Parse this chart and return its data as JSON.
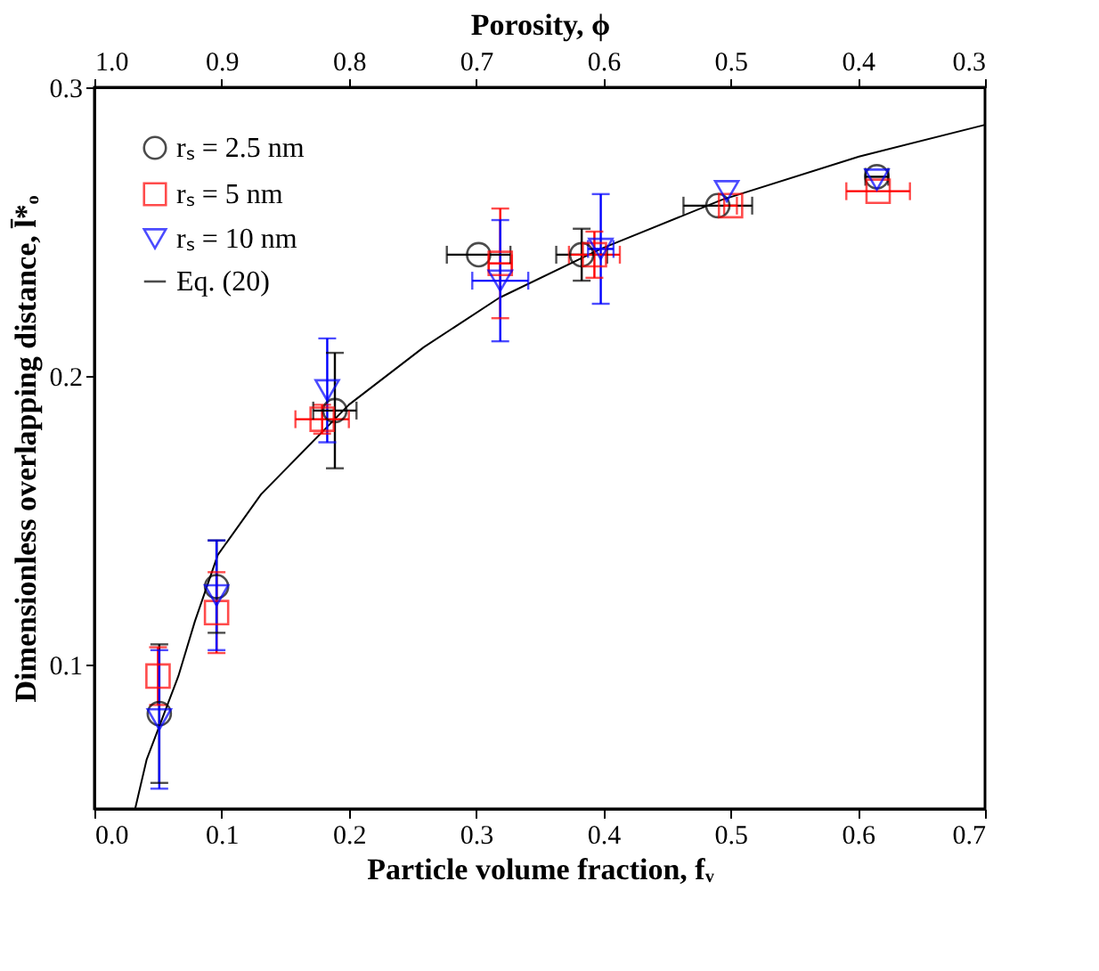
{
  "chart_data": {
    "type": "scatter",
    "xlabel": "Particle volume fraction, fᵥ",
    "ylabel": "Dimensionless overlapping distance, l̄*ₒ",
    "x2label": "Porosity, ϕ",
    "xlim": [
      0,
      0.7
    ],
    "xticks": [
      {
        "value": 0,
        "label": "0.0"
      },
      0.1,
      0.2,
      0.3,
      0.4,
      0.5,
      0.6,
      0.7
    ],
    "x2lim": [
      1.0,
      0.3
    ],
    "x2ticks": [
      {
        "value": 1,
        "label": "1.0"
      },
      0.9,
      0.8,
      0.7,
      0.6,
      0.5,
      0.4,
      0.3
    ],
    "ylim": [
      0.05,
      0.3
    ],
    "yticks": [
      0.1,
      0.2,
      0.3
    ],
    "grid": false,
    "legend": "top left",
    "series": [
      {
        "name": "rₛ = 2.5 nm",
        "marker": "circle",
        "color": "#000000",
        "x": [
          0.051,
          0.096,
          0.189,
          0.302,
          0.383,
          0.49,
          0.615
        ],
        "values": [
          0.083,
          0.127,
          0.188,
          0.242,
          0.242,
          0.259,
          0.269
        ],
        "errors": [
          0.024,
          0.016,
          0.02,
          null,
          0.009,
          null,
          null
        ],
        "xerrors": [
          null,
          null,
          0.017,
          0.025,
          0.02,
          0.027,
          0.009
        ]
      },
      {
        "name": "rₛ = 5 nm",
        "marker": "square",
        "color": "#ff0000",
        "x": [
          0.05,
          0.096,
          0.179,
          0.319,
          0.393,
          0.5,
          0.616
        ],
        "values": [
          0.096,
          0.118,
          0.185,
          0.239,
          0.242,
          0.259,
          0.264
        ],
        "errors": [
          0.01,
          0.014,
          0.005,
          0.019,
          0.008,
          null,
          null
        ],
        "xerrors": [
          null,
          null,
          0.021,
          0.009,
          0.02,
          0.005,
          0.025
        ]
      },
      {
        "name": "rₛ = 10 nm",
        "marker": "triangle",
        "color": "#0000ff",
        "x": [
          0.051,
          0.096,
          0.183,
          0.319,
          0.398,
          0.497,
          0.615
        ],
        "values": [
          0.081,
          0.124,
          0.195,
          0.233,
          0.244,
          0.264,
          0.268
        ],
        "errors": [
          0.024,
          0.019,
          0.018,
          0.021,
          0.019,
          null,
          null
        ],
        "xerrors": [
          null,
          null,
          null,
          0.022,
          0.01,
          null,
          null
        ]
      },
      {
        "name": "Eq. (20)",
        "type": "line",
        "line_style": "solid",
        "color": "#000000",
        "x": [
          0.032,
          0.041,
          0.066,
          0.079,
          0.097,
          0.131,
          0.2,
          0.259,
          0.318,
          0.398,
          0.493,
          0.601,
          0.7
        ],
        "values": [
          0.05,
          0.067,
          0.096,
          0.115,
          0.138,
          0.159,
          0.19,
          0.21,
          0.227,
          0.244,
          0.261,
          0.276,
          0.287
        ]
      }
    ]
  }
}
